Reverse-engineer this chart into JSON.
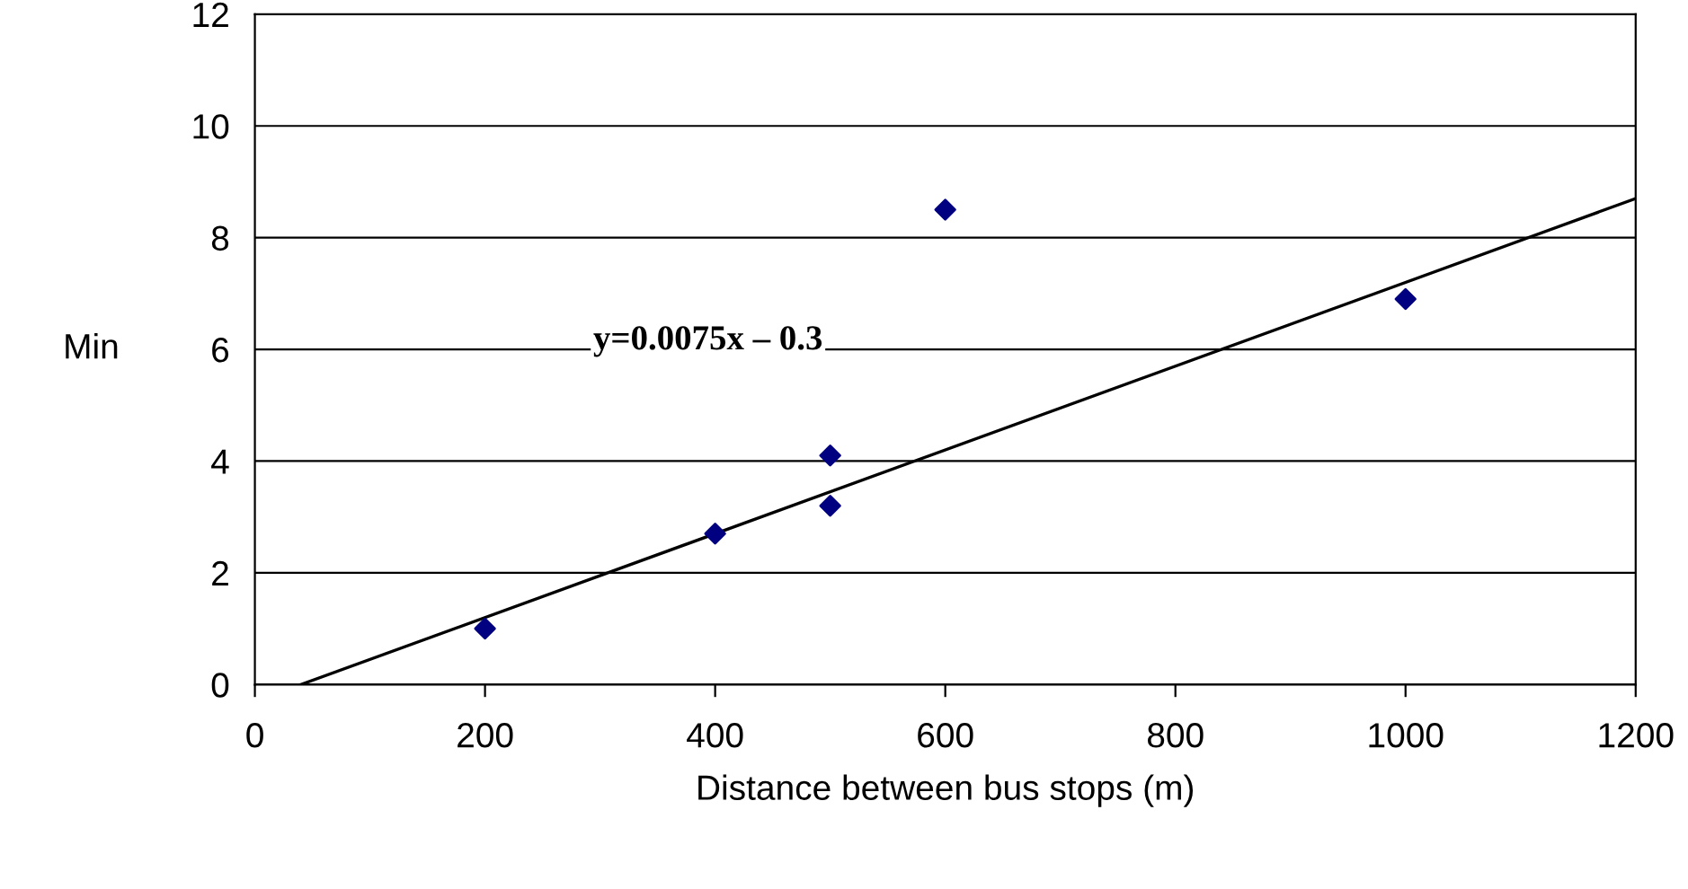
{
  "chart_data": {
    "type": "scatter",
    "xlabel": "Distance between bus stops (m)",
    "ylabel": "Min",
    "annotations": [
      "y=0.0075x – 0.3"
    ],
    "series": [
      {
        "color": "#000080",
        "x": [
          200,
          400,
          500,
          500,
          600,
          1000
        ],
        "values": [
          1.0,
          2.7,
          3.2,
          4.1,
          8.5,
          6.9
        ],
        "marker": "diamond"
      },
      {
        "type": "line",
        "color": "#000000",
        "x": [
          40,
          1200
        ],
        "values": [
          0,
          8.7
        ],
        "marker": "none",
        "line_style": "solid"
      }
    ],
    "xlim": [
      0,
      1200
    ],
    "xticks": [
      0,
      200,
      400,
      600,
      800,
      1000,
      1200
    ],
    "ylim": [
      0,
      12
    ],
    "yticks": [
      0,
      2,
      4,
      6,
      8,
      10,
      12
    ],
    "grid": "y",
    "legend": false
  }
}
